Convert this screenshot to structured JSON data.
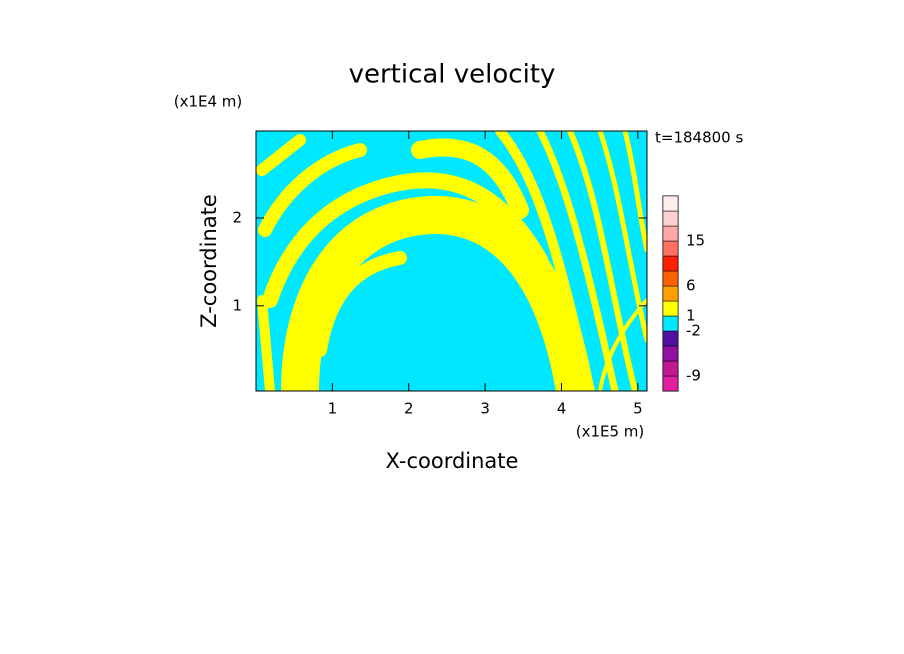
{
  "chart_data": {
    "type": "contour",
    "title": "vertical velocity",
    "x_label": "X-coordinate",
    "y_label": "Z-coordinate",
    "x_unit": "(x1E5 m)",
    "y_unit": "(x1E4 m)",
    "annotation": "t=184800 s",
    "xlim": [
      0,
      5.12
    ],
    "xticks": [
      1,
      2,
      3,
      4,
      5
    ],
    "ylim": [
      0.03,
      2.99
    ],
    "yticks": [
      1,
      2
    ],
    "colorbar": {
      "levels": [
        -12,
        -9,
        -6,
        -4,
        -2,
        1,
        3,
        6,
        8,
        10,
        15,
        18,
        21,
        25
      ],
      "colors": [
        "#e020a0",
        "#c01890",
        "#9010a0",
        "#5010a0",
        "#00e8ff",
        "#ffff00",
        "#ffa000",
        "#ff6000",
        "#ff2000",
        "#ff7060",
        "#ffa8a8",
        "#ffd0d0",
        "#ffeeee"
      ],
      "ticks": [
        15,
        6,
        1,
        -2,
        -9
      ]
    }
  }
}
